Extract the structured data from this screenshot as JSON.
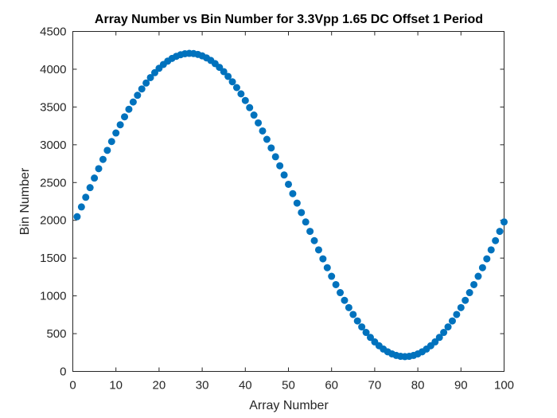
{
  "chart_data": {
    "type": "scatter",
    "title": "Array Number vs Bin Number for 3.3Vpp 1.65 DC Offset 1 Period",
    "xlabel": "Array Number",
    "ylabel": "Bin Number",
    "xlim": [
      0,
      100
    ],
    "ylim": [
      0,
      4500
    ],
    "xticks": [
      0,
      10,
      20,
      30,
      40,
      50,
      60,
      70,
      80,
      90,
      100
    ],
    "yticks": [
      0,
      500,
      1000,
      1500,
      2000,
      2500,
      3000,
      3500,
      4000,
      4500
    ],
    "grid": false,
    "legend": "none",
    "marker_color": "#0072BD",
    "series": [
      {
        "x": [
          1,
          2,
          3,
          4,
          5,
          6,
          7,
          8,
          9,
          10,
          11,
          12,
          13,
          14,
          15,
          16,
          17,
          18,
          19,
          20,
          21,
          22,
          23,
          24,
          25,
          26,
          27,
          28,
          29,
          30,
          31,
          32,
          33,
          34,
          35,
          36,
          37,
          38,
          39,
          40,
          41,
          42,
          43,
          44,
          45,
          46,
          47,
          48,
          49,
          50,
          51,
          52,
          53,
          54,
          55,
          56,
          57,
          58,
          59,
          60,
          61,
          62,
          63,
          64,
          65,
          66,
          67,
          68,
          69,
          70,
          71,
          72,
          73,
          74,
          75,
          76,
          77,
          78,
          79,
          80,
          81,
          82,
          83,
          84,
          85,
          86,
          87,
          88,
          89,
          90,
          91,
          92,
          93,
          94,
          95,
          96,
          97,
          98,
          99,
          100
        ],
        "y": [
          2048,
          2177,
          2305,
          2433,
          2559,
          2684,
          2806,
          2926,
          3043,
          3156,
          3265,
          3370,
          3470,
          3566,
          3655,
          3739,
          3817,
          3889,
          3954,
          4012,
          4063,
          4107,
          4143,
          4171,
          4192,
          4205,
          4210,
          4207,
          4196,
          4177,
          4150,
          4116,
          4074,
          4025,
          3968,
          3905,
          3834,
          3757,
          3674,
          3586,
          3492,
          3393,
          3290,
          3183,
          3072,
          2958,
          2841,
          2722,
          2600,
          2477,
          2353,
          2228,
          2103,
          1978,
          1854,
          1731,
          1609,
          1490,
          1373,
          1259,
          1149,
          1043,
          941,
          845,
          754,
          668,
          589,
          516,
          450,
          391,
          340,
          296,
          260,
          232,
          212,
          200,
          196,
          200,
          212,
          232,
          260,
          296,
          340,
          391,
          450,
          516,
          589,
          668,
          754,
          845,
          941,
          1043,
          1149,
          1259,
          1373,
          1490,
          1609,
          1731,
          1854,
          1978
        ]
      }
    ]
  }
}
